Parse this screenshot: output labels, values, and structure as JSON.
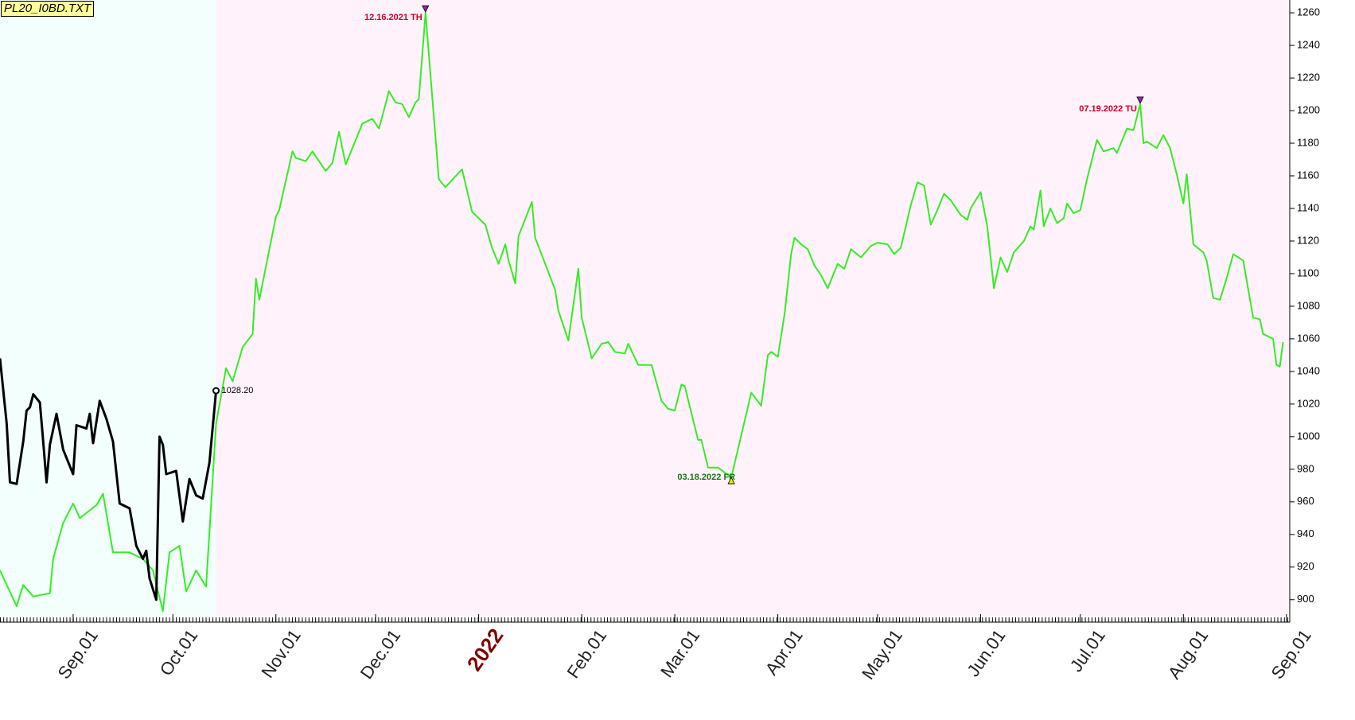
{
  "chart_data": {
    "type": "line",
    "title": "PL20_I0BD.TXT",
    "xlim": [
      "2021-08-10",
      "2022-09-02"
    ],
    "xticks": [
      {
        "value": "2021-09-01",
        "label": "Sep.01"
      },
      {
        "value": "2021-10-01",
        "label": "Oct.01"
      },
      {
        "value": "2021-11-01",
        "label": "Nov.01"
      },
      {
        "value": "2021-12-01",
        "label": "Dec.01"
      },
      {
        "value": "2022-01-01",
        "label": "2022"
      },
      {
        "value": "2022-02-01",
        "label": "Feb.01"
      },
      {
        "value": "2022-03-01",
        "label": "Mar.01"
      },
      {
        "value": "2022-04-01",
        "label": "Apr.01"
      },
      {
        "value": "2022-05-01",
        "label": "May.01"
      },
      {
        "value": "2022-06-01",
        "label": "Jun.01"
      },
      {
        "value": "2022-07-01",
        "label": "Jul.01"
      },
      {
        "value": "2022-08-01",
        "label": "Aug.01"
      },
      {
        "value": "2022-09-01",
        "label": "Sep.01"
      }
    ],
    "ylim": [
      895,
      1262
    ],
    "yticks": [
      900,
      920,
      940,
      960,
      980,
      1000,
      1020,
      1040,
      1060,
      1080,
      1100,
      1120,
      1140,
      1160,
      1180,
      1200,
      1220,
      1240,
      1260
    ],
    "series": [
      {
        "color": "#33ee22",
        "x": [
          "2021-08-10",
          "2021-08-15",
          "2021-08-17",
          "2021-08-20",
          "2021-08-25",
          "2021-08-26",
          "2021-08-29",
          "2021-09-01",
          "2021-09-03",
          "2021-09-08",
          "2021-09-10",
          "2021-09-13",
          "2021-09-18",
          "2021-09-22",
          "2021-09-25",
          "2021-09-28",
          "2021-09-30",
          "2021-10-03",
          "2021-10-05",
          "2021-10-08",
          "2021-10-11",
          "2021-10-14",
          "2021-10-17",
          "2021-10-19",
          "2021-10-22",
          "2021-10-25",
          "2021-10-26",
          "2021-10-27",
          "2021-11-01",
          "2021-11-02",
          "2021-11-06",
          "2021-11-07",
          "2021-11-10",
          "2021-11-12",
          "2021-11-16",
          "2021-11-18",
          "2021-11-20",
          "2021-11-22",
          "2021-11-27",
          "2021-11-30",
          "2021-12-02",
          "2021-12-04",
          "2021-12-05",
          "2021-12-07",
          "2021-12-09",
          "2021-12-11",
          "2021-12-13",
          "2021-12-14",
          "2021-12-16",
          "2021-12-20",
          "2021-12-22",
          "2021-12-27",
          "2021-12-30",
          "2022-01-03",
          "2022-01-05",
          "2022-01-07",
          "2022-01-09",
          "2022-01-10",
          "2022-01-12",
          "2022-01-13",
          "2022-01-17",
          "2022-01-18",
          "2022-01-21",
          "2022-01-24",
          "2022-01-25",
          "2022-01-28",
          "2022-01-31",
          "2022-02-01",
          "2022-02-04",
          "2022-02-07",
          "2022-02-09",
          "2022-02-11",
          "2022-02-14",
          "2022-02-15",
          "2022-02-18",
          "2022-02-22",
          "2022-02-25",
          "2022-02-27",
          "2022-03-01",
          "2022-03-03",
          "2022-03-04",
          "2022-03-08",
          "2022-03-09",
          "2022-03-11",
          "2022-03-14",
          "2022-03-16",
          "2022-03-18",
          "2022-03-21",
          "2022-03-24",
          "2022-03-27",
          "2022-03-29",
          "2022-03-30",
          "2022-04-01",
          "2022-04-03",
          "2022-04-05",
          "2022-04-06",
          "2022-04-08",
          "2022-04-10",
          "2022-04-12",
          "2022-04-14",
          "2022-04-16",
          "2022-04-19",
          "2022-04-21",
          "2022-04-23",
          "2022-04-26",
          "2022-04-29",
          "2022-05-01",
          "2022-05-04",
          "2022-05-06",
          "2022-05-08",
          "2022-05-11",
          "2022-05-13",
          "2022-05-15",
          "2022-05-17",
          "2022-05-19",
          "2022-05-21",
          "2022-05-23",
          "2022-05-26",
          "2022-05-28",
          "2022-05-29",
          "2022-06-01",
          "2022-06-03",
          "2022-06-05",
          "2022-06-07",
          "2022-06-09",
          "2022-06-11",
          "2022-06-14",
          "2022-06-16",
          "2022-06-17",
          "2022-06-19",
          "2022-06-20",
          "2022-06-22",
          "2022-06-24",
          "2022-06-26",
          "2022-06-27",
          "2022-06-29",
          "2022-07-01",
          "2022-07-03",
          "2022-07-06",
          "2022-07-08",
          "2022-07-11",
          "2022-07-12",
          "2022-07-15",
          "2022-07-17",
          "2022-07-19",
          "2022-07-20",
          "2022-07-21",
          "2022-07-24",
          "2022-07-26",
          "2022-07-28",
          "2022-07-30",
          "2022-08-01",
          "2022-08-02",
          "2022-08-04",
          "2022-08-07",
          "2022-08-08",
          "2022-08-10",
          "2022-08-12",
          "2022-08-14",
          "2022-08-16",
          "2022-08-19",
          "2022-08-22",
          "2022-08-24",
          "2022-08-25",
          "2022-08-28",
          "2022-08-29",
          "2022-08-30",
          "2022-08-31"
        ],
        "values": [
          918,
          896,
          909,
          902,
          904,
          925,
          947,
          959,
          950,
          958,
          965,
          929,
          929,
          925,
          918,
          893,
          929,
          933,
          905,
          918,
          908,
          1008,
          1042,
          1034,
          1055,
          1063,
          1097,
          1084,
          1135,
          1139,
          1175,
          1171,
          1169,
          1175,
          1163,
          1168,
          1187,
          1167,
          1192,
          1195,
          1189,
          1204,
          1212,
          1205,
          1204,
          1196,
          1205,
          1207,
          1260,
          1158,
          1153,
          1164,
          1138,
          1130,
          1116,
          1106,
          1118,
          1108,
          1094,
          1123,
          1144,
          1122,
          1106,
          1090,
          1077,
          1059,
          1103,
          1073,
          1048,
          1057,
          1058,
          1052,
          1051,
          1057,
          1044,
          1044,
          1022,
          1017,
          1016,
          1032,
          1031,
          998,
          998,
          981,
          981,
          978,
          975,
          1001,
          1027,
          1019,
          1050,
          1052,
          1049,
          1075,
          1112,
          1122,
          1118,
          1115,
          1105,
          1099,
          1091,
          1106,
          1103,
          1115,
          1110,
          1117,
          1119,
          1118,
          1112,
          1116,
          1142,
          1156,
          1154,
          1130,
          1139,
          1149,
          1145,
          1136,
          1133,
          1140,
          1150,
          1129,
          1091,
          1110,
          1101,
          1113,
          1120,
          1129,
          1127,
          1151,
          1129,
          1140,
          1131,
          1134,
          1143,
          1137,
          1139,
          1158,
          1182,
          1175,
          1177,
          1174,
          1189,
          1188,
          1204,
          1180,
          1181,
          1177,
          1185,
          1177,
          1161,
          1143,
          1161,
          1118,
          1113,
          1108,
          1085,
          1084,
          1097,
          1112,
          1108,
          1073,
          1072,
          1063,
          1060,
          1044,
          1043,
          1058
        ]
      },
      {
        "color": "#000000",
        "x": [
          "2021-08-10",
          "2021-08-12",
          "2021-08-13",
          "2021-08-15",
          "2021-08-17",
          "2021-08-18",
          "2021-08-19",
          "2021-08-20",
          "2021-08-22",
          "2021-08-23",
          "2021-08-24",
          "2021-08-25",
          "2021-08-27",
          "2021-08-29",
          "2021-09-01",
          "2021-09-02",
          "2021-09-05",
          "2021-09-06",
          "2021-09-07",
          "2021-09-09",
          "2021-09-11",
          "2021-09-13",
          "2021-09-15",
          "2021-09-18",
          "2021-09-20",
          "2021-09-22",
          "2021-09-23",
          "2021-09-24",
          "2021-09-26",
          "2021-09-27",
          "2021-09-28",
          "2021-09-29",
          "2021-10-02",
          "2021-10-04",
          "2021-10-06",
          "2021-10-08",
          "2021-10-10",
          "2021-10-12",
          "2021-10-14"
        ],
        "values": [
          1048,
          1008,
          972,
          971,
          997,
          1016,
          1018,
          1026,
          1021,
          997,
          972,
          995,
          1014,
          992,
          977,
          1007,
          1005,
          1014,
          996,
          1022,
          1011,
          997,
          959,
          956,
          933,
          925,
          930,
          913,
          900,
          1000,
          995,
          977,
          979,
          948,
          974,
          964,
          962,
          984,
          1028.2
        ]
      }
    ],
    "annotations": [
      {
        "text": "12.16.2021 TH",
        "x": "2021-12-16",
        "y": 1260,
        "color": "#cc0022",
        "marker": "down"
      },
      {
        "text": "03.18.2022 FR",
        "x": "2022-03-18",
        "y": 975,
        "color": "#117711",
        "marker": "up"
      },
      {
        "text": "07.19.2022 TU",
        "x": "2022-07-19",
        "y": 1204,
        "color": "#cc0022",
        "marker": "down"
      },
      {
        "text": "1028.20",
        "x": "2021-10-14",
        "y": 1028.2,
        "color": "#000000",
        "marker": "circle"
      }
    ]
  }
}
